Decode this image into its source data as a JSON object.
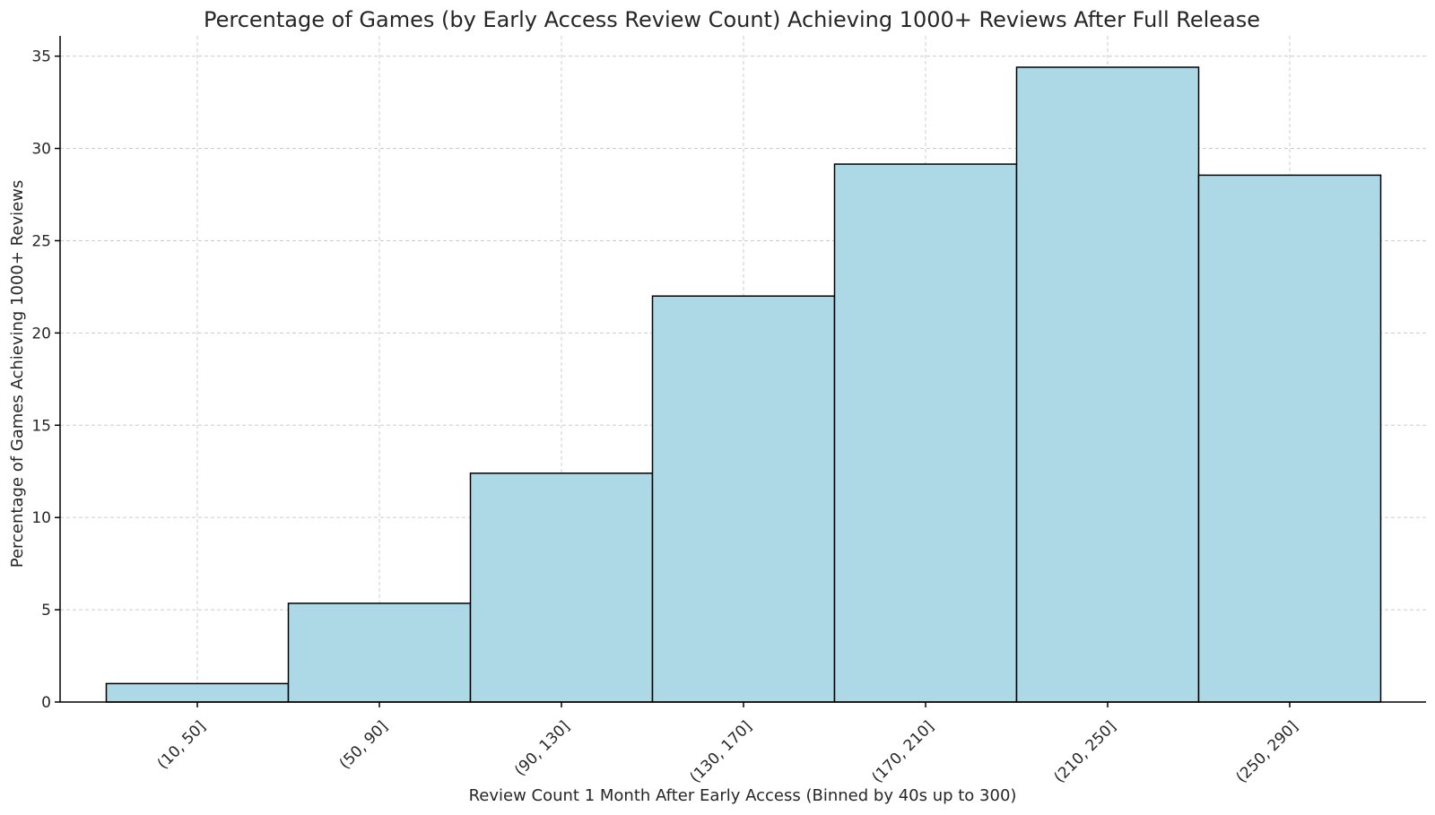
{
  "chart_data": {
    "type": "bar",
    "title": "Percentage of Games (by Early Access Review Count) Achieving 1000+ Reviews After Full Release",
    "xlabel": "Review Count 1 Month After Early Access (Binned by 40s up to 300)",
    "ylabel": "Percentage of Games Achieving 1000+ Reviews",
    "categories": [
      "(10, 50]",
      "(50, 90]",
      "(90, 130]",
      "(130, 170]",
      "(170, 210]",
      "(210, 250]",
      "(250, 290]"
    ],
    "values": [
      1.0,
      5.35,
      12.4,
      22.0,
      29.15,
      34.4,
      28.55
    ],
    "ylim": [
      0,
      36.1
    ],
    "yticks": [
      0,
      5,
      10,
      15,
      20,
      25,
      30,
      35
    ],
    "grid": true,
    "bar_color": "#add8e6",
    "edge_color": "#000000"
  }
}
